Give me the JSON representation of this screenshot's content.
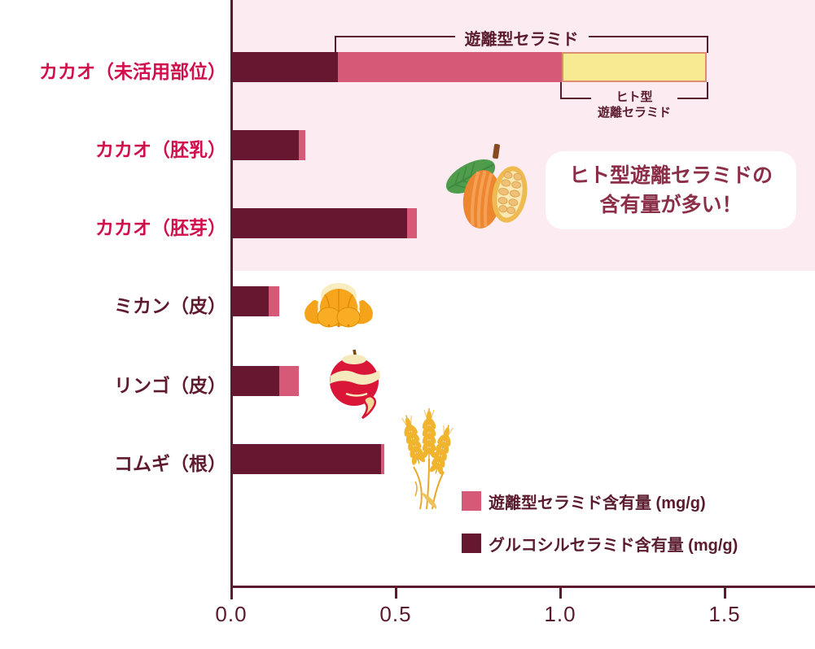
{
  "chart_data": {
    "type": "bar",
    "orientation": "horizontal",
    "stacked": true,
    "title": "",
    "xlabel": "",
    "ylabel": "",
    "xlim": [
      0,
      1.77
    ],
    "x_ticks": [
      "0.0",
      "0.5",
      "1.0",
      "1.5"
    ],
    "x_tick_values": [
      0,
      0.5,
      1.0,
      1.5
    ],
    "grid": false,
    "categories": [
      "カカオ（未活用部位）",
      "カカオ（胚乳）",
      "カカオ（胚芽）",
      "ミカン（皮）",
      "リンゴ（皮）",
      "コムギ（根）"
    ],
    "category_colors": [
      "#d0104c",
      "#d0104c",
      "#d0104c",
      "#5f1b2e",
      "#5f1b2e",
      "#5f1b2e"
    ],
    "series": [
      {
        "name": "グルコシルセラミド含有量 (mg/g)",
        "color": "#671830",
        "values": [
          0.32,
          0.2,
          0.53,
          0.11,
          0.14,
          0.45
        ]
      },
      {
        "name": "遊離型セラミド含有量 (mg/g)",
        "color": "#d65a78",
        "values": [
          0.68,
          0.02,
          0.03,
          0.03,
          0.06,
          0.01
        ]
      },
      {
        "name": "ヒト型遊離セラミド",
        "color": "#f8ea92",
        "border_color": "#dc8f70",
        "values": [
          0.44,
          0,
          0,
          0,
          0,
          0
        ]
      }
    ],
    "highlight_band_rows": [
      0,
      1,
      2
    ],
    "highlight_band_color": "#fcebf1"
  },
  "annotations": {
    "free_ceramide_bracket_label": "遊離型セラミド",
    "human_type_bracket_label_line1": "ヒト型",
    "human_type_bracket_label_line2": "遊離セラミド",
    "callout_line1": "ヒト型遊離セラミドの",
    "callout_line2": "含有量が多い！"
  },
  "legend": {
    "items": [
      {
        "label": "遊離型セラミド含有量 (mg/g)",
        "color": "#d65a78"
      },
      {
        "label": "グルコシルセラミド含有量 (mg/g)",
        "color": "#671830"
      }
    ]
  },
  "icons": [
    {
      "name": "cacao-icon"
    },
    {
      "name": "mandarin-icon"
    },
    {
      "name": "apple-icon"
    },
    {
      "name": "wheat-icon"
    }
  ],
  "colors": {
    "axis": "#5a1b2e",
    "tick_text": "#5a1b2e",
    "legend_text": "#5a1b2e",
    "bracket": "#5a1b2e",
    "callout_text": "#8b2e48",
    "band": "#fcebf1",
    "background": "#ffffff"
  }
}
